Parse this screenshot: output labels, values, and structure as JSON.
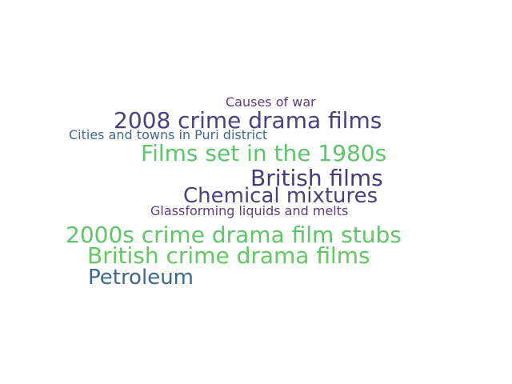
{
  "word_cloud": {
    "words": [
      {
        "text": "Causes of war",
        "color": "#5b3d7e"
      },
      {
        "text": "2008 crime drama films",
        "color": "#46437f"
      },
      {
        "text": "Cities and towns in Puri district",
        "color": "#3d6a8a"
      },
      {
        "text": "Films set in the 1980s",
        "color": "#5ec56a"
      },
      {
        "text": "British films",
        "color": "#443a7c"
      },
      {
        "text": "Chemical mixtures",
        "color": "#46437f"
      },
      {
        "text": "Glassforming liquids and melts",
        "color": "#5b3d7e"
      },
      {
        "text": "2000s crime drama film stubs",
        "color": "#5ec56a"
      },
      {
        "text": "British crime drama films",
        "color": "#62c862"
      },
      {
        "text": "Petroleum",
        "color": "#3a6b8c"
      }
    ]
  }
}
